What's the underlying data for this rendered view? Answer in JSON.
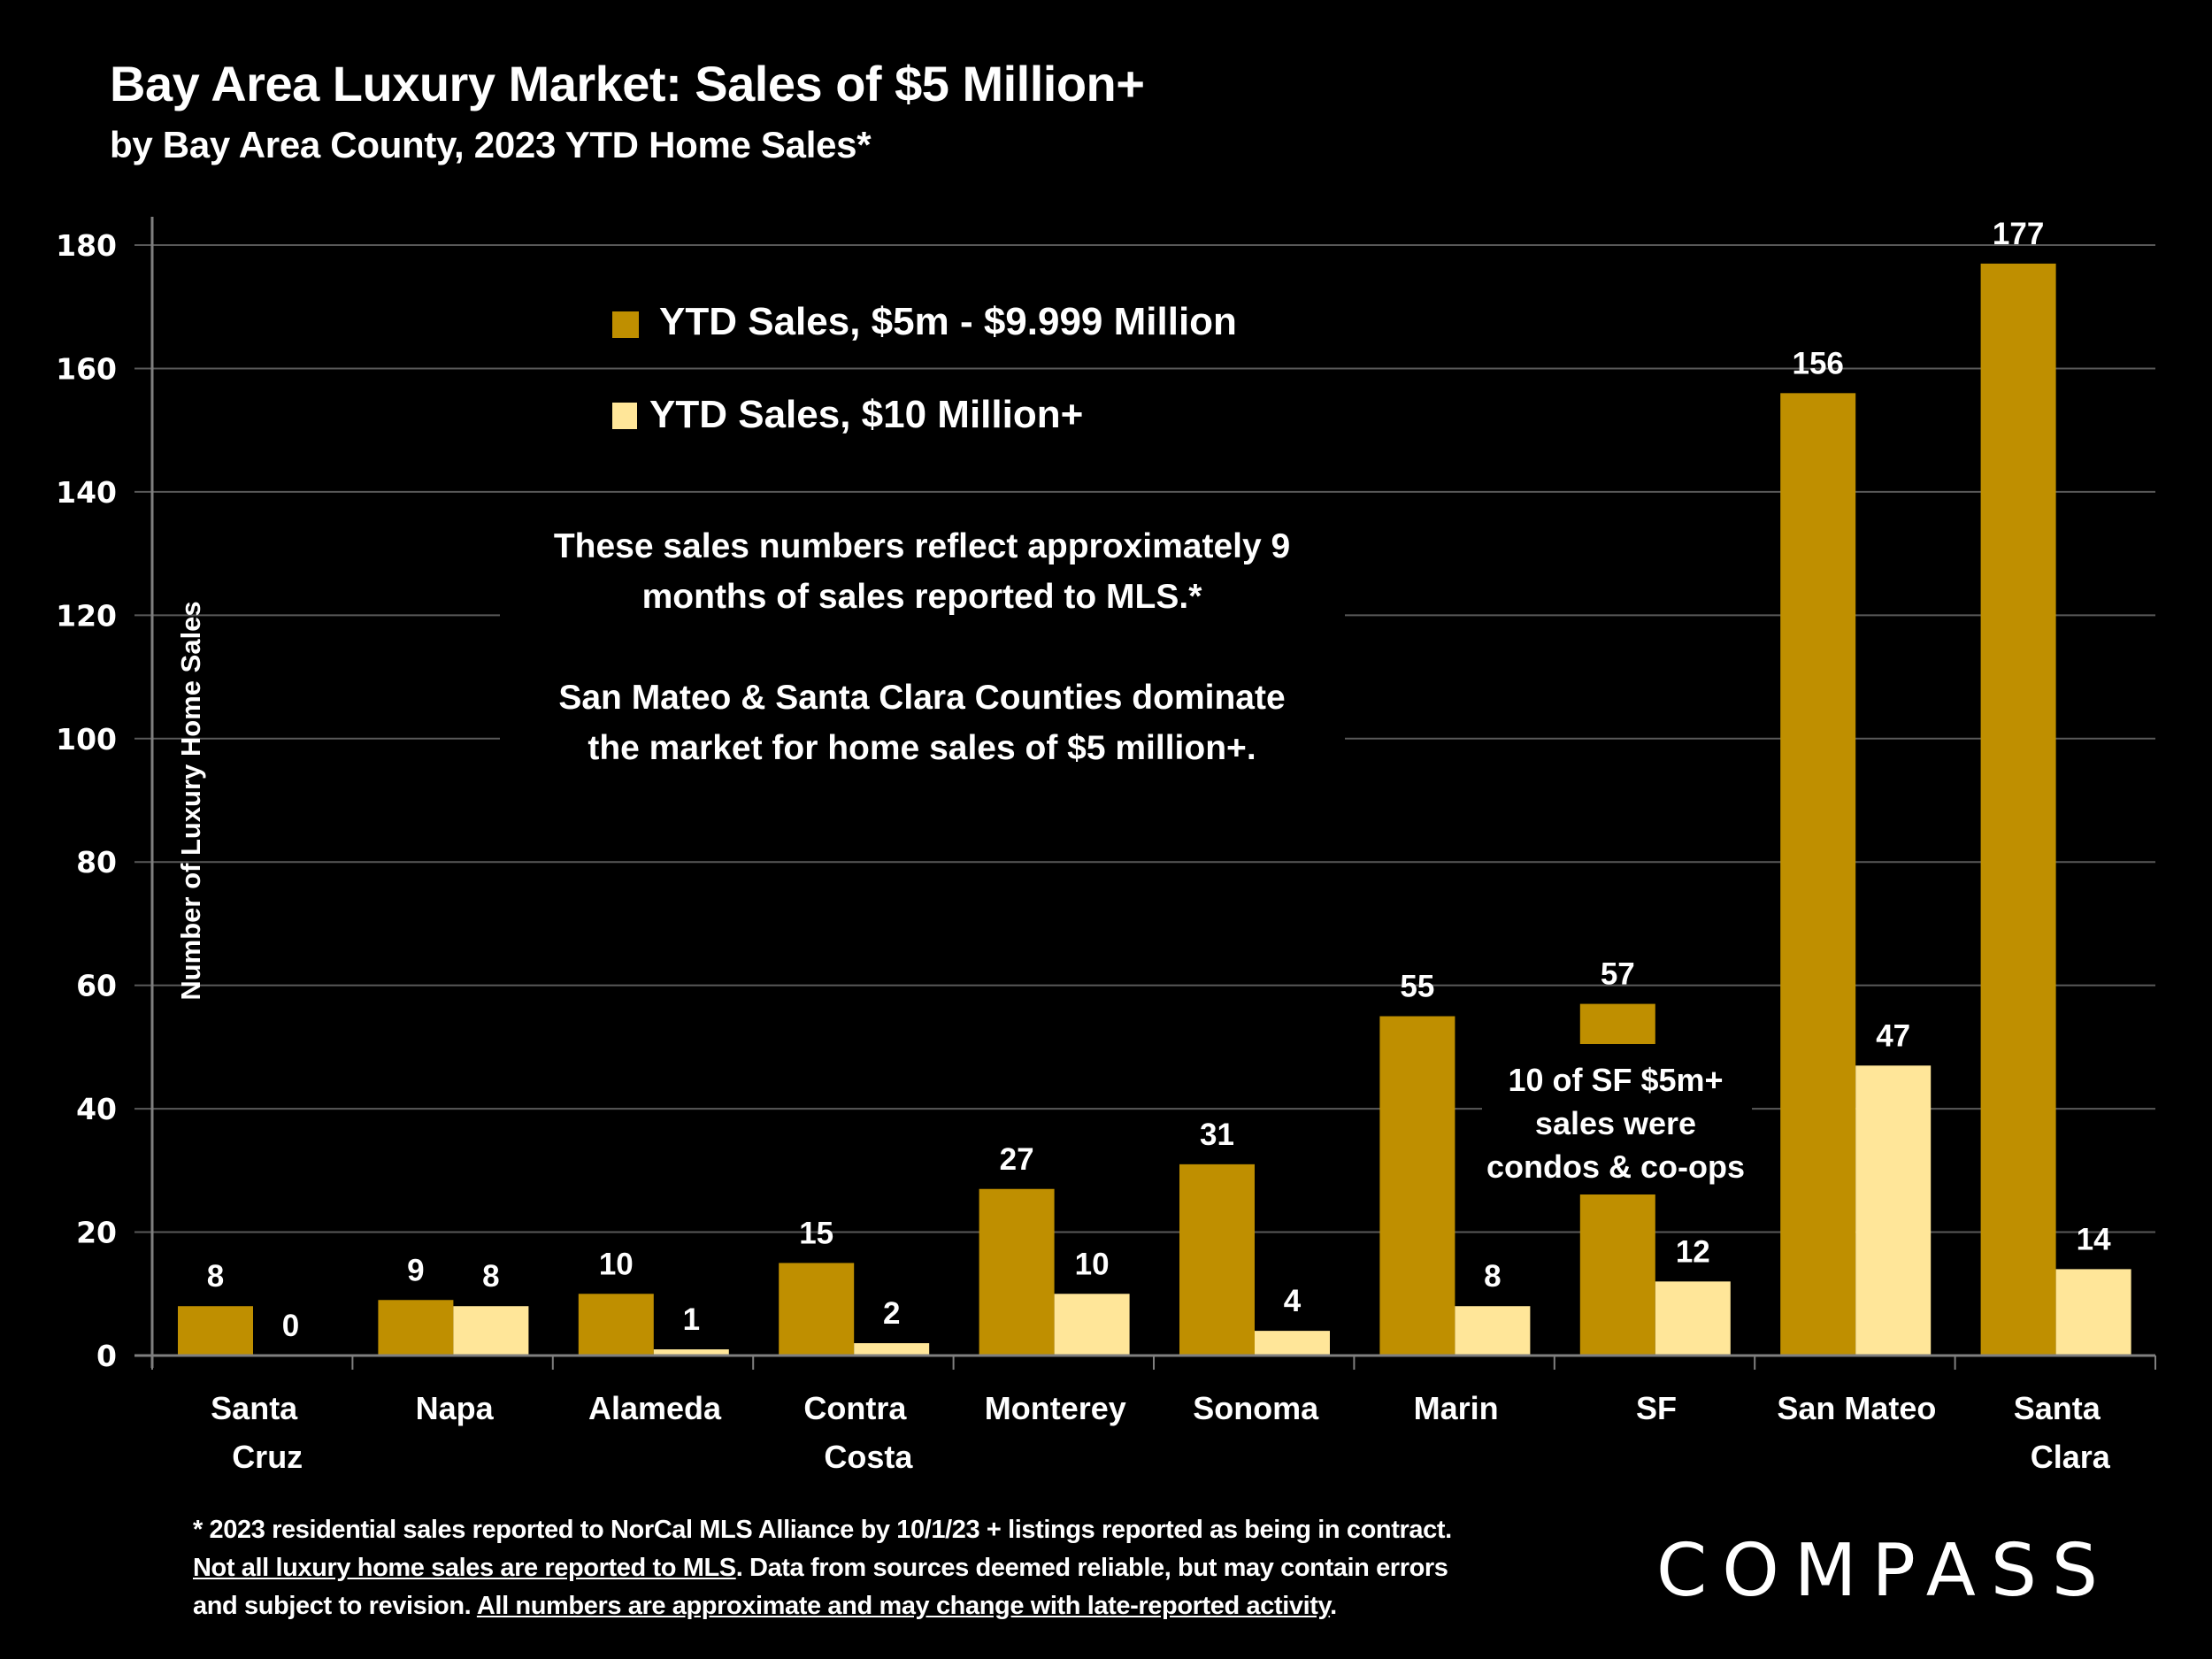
{
  "header": {
    "title": "Bay Area Luxury Market: Sales of $5 Million+",
    "subtitle": "by Bay Area County, 2023 YTD Home Sales*"
  },
  "colors": {
    "background": "#000000",
    "series_5m_10m": "#BF8F00",
    "series_10m_plus": "#FFE699",
    "gridline": "#595959",
    "axis": "#7F7F7F",
    "text": "#FFFFFF"
  },
  "chart_data": {
    "type": "bar",
    "title": "Bay Area Luxury Market: Sales of $5 Million+",
    "subtitle": "by Bay Area County, 2023 YTD Home Sales*",
    "xlabel": "",
    "ylabel": "Number of Luxury Home Sales",
    "ylim": [
      0,
      180
    ],
    "yticks": [
      0,
      20,
      40,
      60,
      80,
      100,
      120,
      140,
      160,
      180
    ],
    "grid": true,
    "legend_position": "top-center",
    "categories": [
      [
        "Santa",
        "Cruz"
      ],
      [
        "Napa"
      ],
      [
        "Alameda"
      ],
      [
        "Contra",
        "Costa"
      ],
      [
        "Monterey"
      ],
      [
        "Sonoma"
      ],
      [
        "Marin"
      ],
      [
        "SF"
      ],
      [
        "San Mateo"
      ],
      [
        "Santa",
        "Clara"
      ]
    ],
    "series": [
      {
        "name": "YTD Sales, $5m - $9.999 Million",
        "color": "#BF8F00",
        "values": [
          8,
          9,
          10,
          15,
          27,
          31,
          55,
          57,
          156,
          177
        ]
      },
      {
        "name": "YTD Sales, $10 Million+",
        "color": "#FFE699",
        "values": [
          0,
          8,
          1,
          2,
          10,
          4,
          8,
          12,
          47,
          14
        ]
      }
    ],
    "annotations": {
      "center_note": [
        "These sales numbers reflect approximately 9",
        "months of sales reported to MLS.*",
        "",
        "San Mateo & Santa Clara Counties dominate",
        "the market for home sales of $5 million+."
      ],
      "sf_note": [
        "10 of SF $5m+",
        "sales were",
        "condos & co-ops"
      ]
    }
  },
  "footnote": {
    "line1": "* 2023 residential sales reported to NorCal MLS Alliance by 10/1/23 + listings reported as being in contract.",
    "line2_underlined": "Not all luxury home sales are reported to MLS",
    "line2_rest": ". Data from sources deemed reliable, but may contain errors",
    "line3_plain": "and subject to revision. ",
    "line3_underlined": "All numbers are approximate and may change with late-reported activity",
    "line3_end": "."
  },
  "brand": {
    "logo_text": "COMPASS"
  }
}
